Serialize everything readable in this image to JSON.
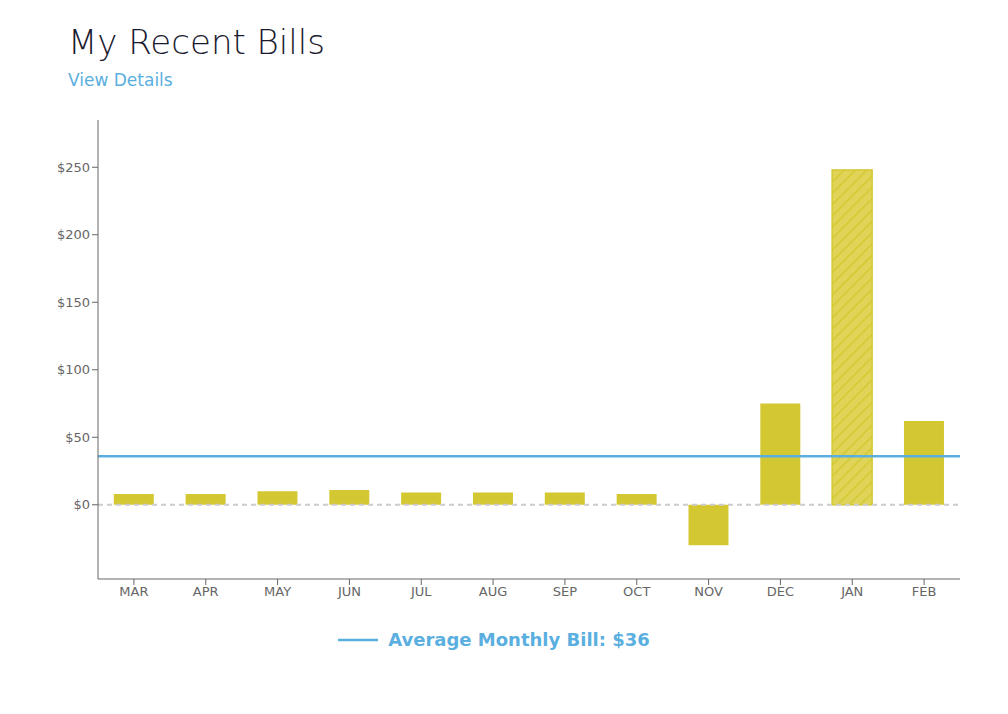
{
  "chart_data": {
    "type": "bar",
    "title": "My Recent Bills",
    "subtitle": "View Details",
    "categories": [
      "MAR",
      "APR",
      "MAY",
      "JUN",
      "JUL",
      "AUG",
      "SEP",
      "OCT",
      "NOV",
      "DEC",
      "JAN",
      "FEB"
    ],
    "values": [
      8,
      8,
      10,
      11,
      9,
      9,
      9,
      8,
      -30,
      75,
      248,
      62
    ],
    "color": "#d4c832",
    "colors": [
      "#d4c832",
      "#d4c832",
      "#d4c832",
      "#d4c832",
      "#d4c832",
      "#d4c832",
      "#d4c832",
      "#d4c832",
      "#d4c832",
      "#d4c832",
      "#e0d458",
      "#d4c832"
    ],
    "ylim": [
      -55,
      285
    ],
    "yticks": [
      {
        "value": 0,
        "label": "$0"
      },
      {
        "value": 50,
        "label": "$50"
      },
      {
        "value": 100,
        "label": "$100"
      },
      {
        "value": 150,
        "label": "$150"
      },
      {
        "value": 200,
        "label": "$200"
      },
      {
        "value": 250,
        "label": "$250"
      }
    ],
    "grid": false,
    "reference_line": {
      "value": 36,
      "label": "Average Monthly Bill: $36",
      "color": "#5aafe0"
    }
  }
}
